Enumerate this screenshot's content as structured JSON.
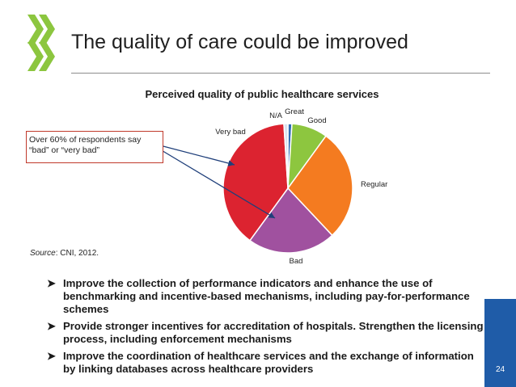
{
  "slide": {
    "title": "The quality of care could be improved",
    "page_number": "24"
  },
  "callout": {
    "text": "Over 60% of respondents say “bad” or “very bad”"
  },
  "source": {
    "label": "Source",
    "text": ": CNI, 2012."
  },
  "bullets": [
    "Improve the collection of performance indicators and enhance the use of benchmarking and incentive-based mechanisms, including pay-for-performance schemes",
    "Provide stronger incentives for accreditation of hospitals. Strengthen the licensing process, including enforcement mechanisms",
    "Improve the coordination of healthcare services and the exchange of information by linking databases across healthcare providers"
  ],
  "colors": {
    "logo_green": "#8cc63f",
    "rule": "#8c8c8c",
    "callout_border": "#c0392b",
    "arrow": "#1f3f7a",
    "page_box": "#1f5ca8"
  },
  "chart_data": {
    "type": "pie",
    "title": "Perceived quality of public healthcare services",
    "categories": [
      "Great",
      "Good",
      "Regular",
      "Bad",
      "Very bad",
      "N/A"
    ],
    "values": [
      1,
      9,
      28,
      22,
      39,
      1
    ],
    "colors": [
      "#2f6db5",
      "#8dc63f",
      "#f47b20",
      "#a0519f",
      "#dc2330",
      "#d9e3f0"
    ]
  }
}
